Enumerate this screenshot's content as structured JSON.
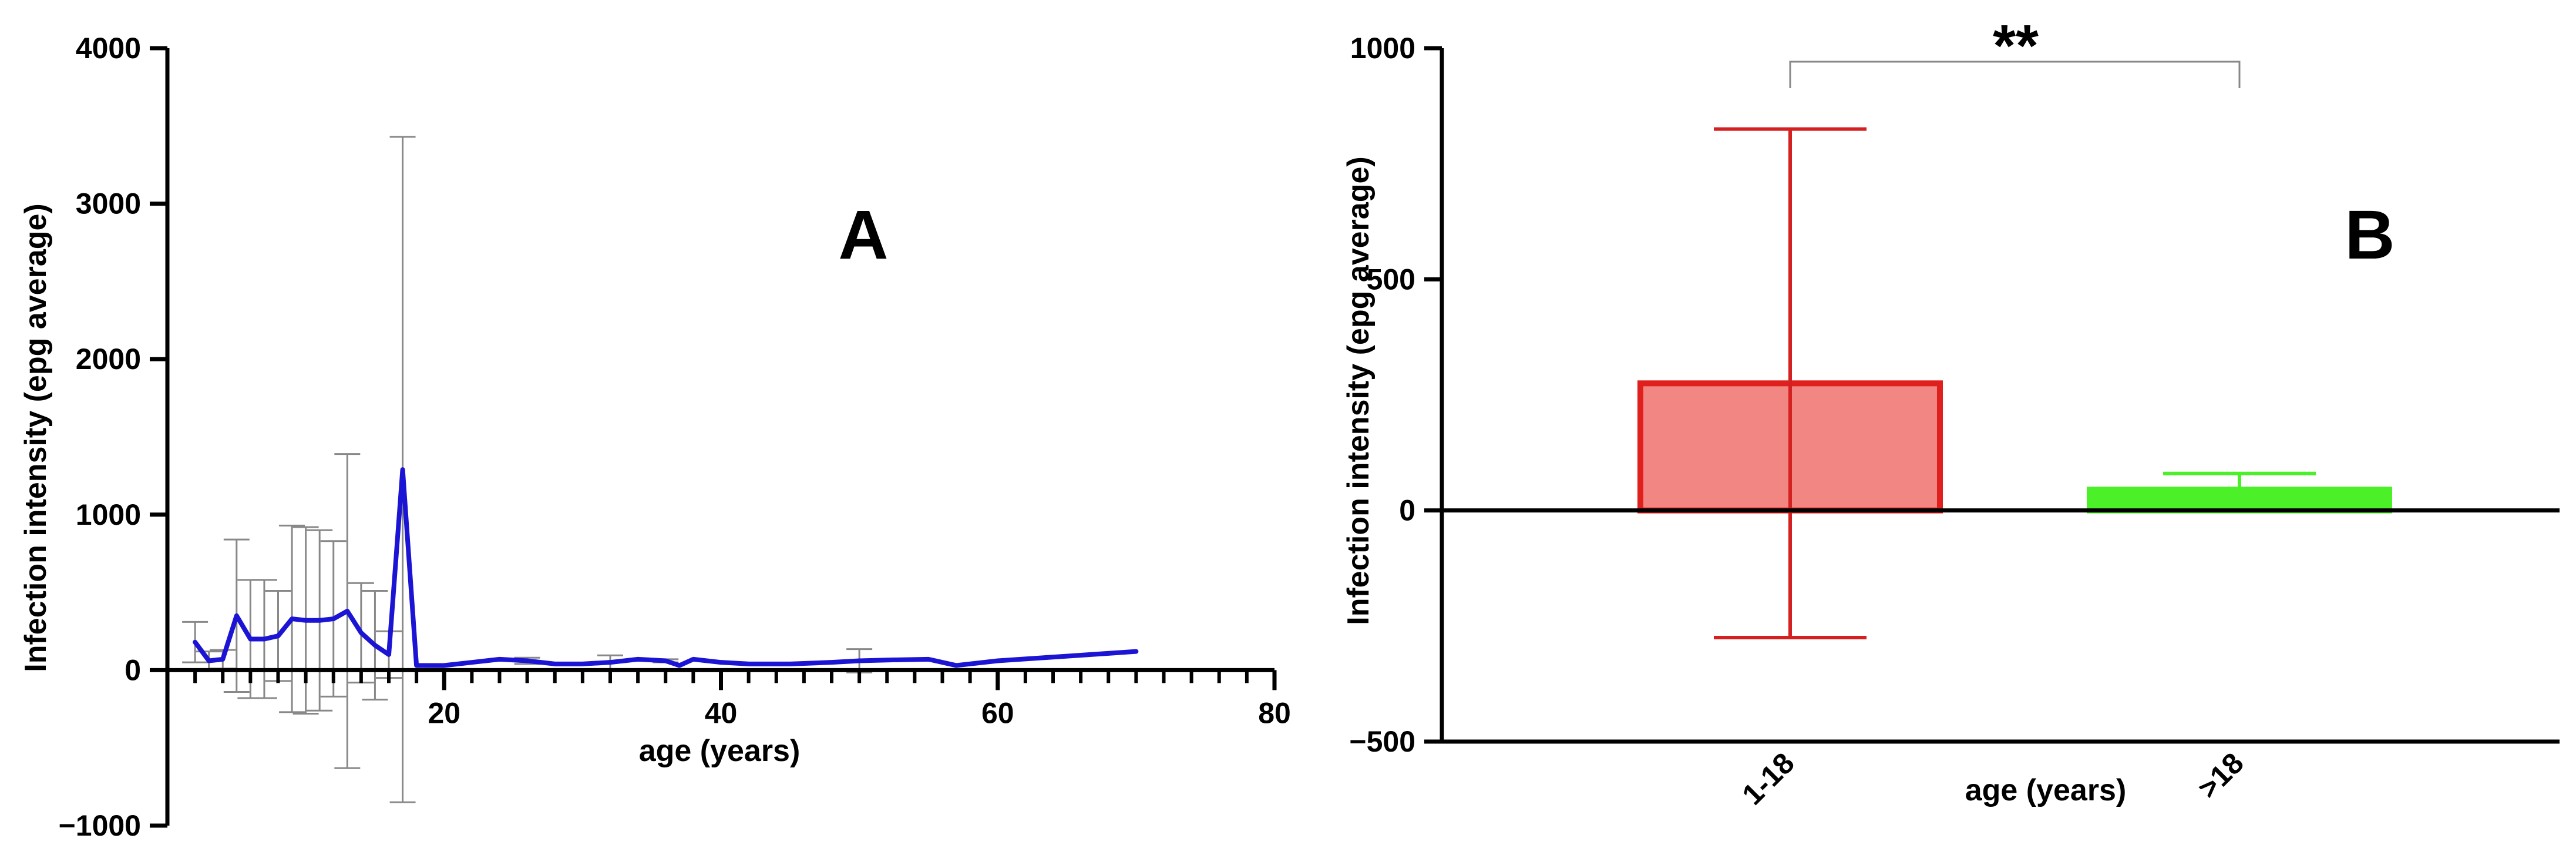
{
  "chart_data": [
    {
      "type": "line",
      "panel_label": "A",
      "xlabel": "age (years)",
      "ylabel": "Infection intensity (epg average)",
      "xlim": [
        0,
        80
      ],
      "ylim": [
        -1000,
        4000
      ],
      "x_ticks": [
        20,
        40,
        60,
        80
      ],
      "y_ticks": [
        -1000,
        0,
        1000,
        2000,
        3000,
        4000
      ],
      "x_tick_labels": [
        "20",
        "40",
        "60",
        "80"
      ],
      "y_tick_labels": [
        "−1000",
        "0",
        "1000",
        "2000",
        "3000",
        "4000"
      ],
      "grid": false,
      "colors": {
        "line": "#1c14d4",
        "error_bars": "#888888",
        "axis": "#000000"
      },
      "series": [
        {
          "x": [
            2,
            3,
            4,
            5,
            6,
            7,
            8,
            9,
            10,
            11,
            12,
            13,
            14,
            15,
            16,
            17,
            18,
            20,
            22,
            24,
            26,
            28,
            30,
            32,
            34,
            36,
            37,
            38,
            40,
            42,
            45,
            48,
            50,
            52,
            55,
            57,
            60,
            65,
            70
          ],
          "y": [
            180,
            60,
            70,
            350,
            200,
            200,
            220,
            330,
            320,
            320,
            330,
            380,
            240,
            160,
            100,
            1290,
            30,
            30,
            50,
            70,
            60,
            40,
            40,
            50,
            70,
            60,
            30,
            70,
            50,
            40,
            40,
            50,
            60,
            65,
            70,
            30,
            60,
            90,
            120
          ],
          "err": [
            130,
            60,
            60,
            490,
            380,
            380,
            290,
            600,
            600,
            580,
            500,
            1010,
            320,
            350,
            150,
            2140,
            0,
            0,
            0,
            0,
            20,
            0,
            0,
            45,
            0,
            10,
            0,
            0,
            0,
            0,
            0,
            0,
            75,
            0,
            0,
            0,
            0,
            0,
            0
          ]
        }
      ]
    },
    {
      "type": "bar",
      "panel_label": "B",
      "xlabel": "age (years)",
      "ylabel": "Infection intensity (epg average)",
      "categories": [
        "1-18",
        ">18"
      ],
      "values": [
        275,
        45
      ],
      "error": [
        550,
        35
      ],
      "ylim": [
        -500,
        1000
      ],
      "y_ticks": [
        -500,
        0,
        500,
        1000
      ],
      "y_tick_labels": [
        "−500",
        "0",
        "500",
        "1000"
      ],
      "significance": "**",
      "grid": false,
      "colors": {
        "bar_fills": [
          "#f28682",
          "#4cf028"
        ],
        "bar_edges": [
          "#e0201c",
          "#4cf028"
        ],
        "error_bars": [
          "#d42020",
          "#4cf028"
        ],
        "bracket": "#888888",
        "axis": "#000000"
      }
    }
  ]
}
